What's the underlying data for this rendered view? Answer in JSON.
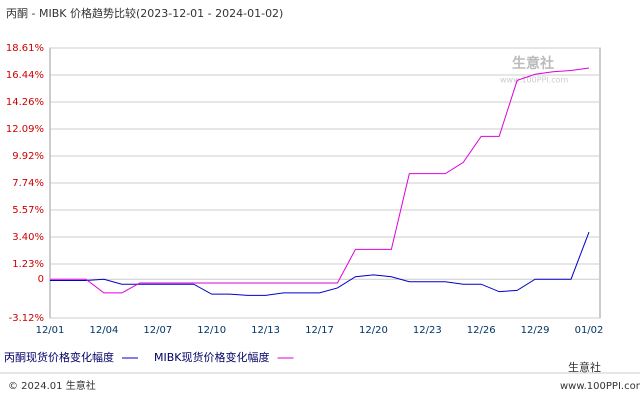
{
  "chart_data": {
    "type": "line",
    "title": "丙酮 - MIBK 价格趋势比较(2023-12-01 - 2024-01-02)",
    "categories": [
      "12/01",
      null,
      null,
      "12/04",
      null,
      null,
      "12/07",
      null,
      null,
      "12/10",
      null,
      null,
      "12/13",
      null,
      null,
      "12/17",
      null,
      null,
      "12/20",
      null,
      null,
      "12/23",
      null,
      null,
      "12/26",
      null,
      null,
      "12/29",
      null,
      null,
      "01/02"
    ],
    "series": [
      {
        "name": "丙酮现货价格变化幅度",
        "color": "#0000cc",
        "values": [
          -0.1,
          -0.1,
          -0.1,
          0,
          -0.4,
          -0.4,
          -0.4,
          -0.4,
          -0.4,
          -1.2,
          -1.2,
          -1.3,
          -1.3,
          -1.1,
          -1.1,
          -1.1,
          -0.7,
          0.2,
          0.35,
          0.2,
          -0.2,
          -0.2,
          -0.2,
          -0.4,
          -0.4,
          -1.0,
          -0.9,
          0,
          0,
          0,
          3.8
        ]
      },
      {
        "name": "MIBK现货价格变化幅度",
        "color": "#dd00dd",
        "values": [
          0,
          0,
          0,
          -1.1,
          -1.1,
          -0.3,
          -0.3,
          -0.3,
          -0.3,
          -0.3,
          -0.3,
          -0.3,
          -0.3,
          -0.3,
          -0.3,
          -0.3,
          -0.3,
          2.4,
          2.4,
          2.4,
          8.5,
          8.5,
          8.5,
          9.4,
          11.5,
          11.5,
          16.0,
          16.5,
          16.7,
          16.8,
          17.0
        ]
      }
    ],
    "ylim": [
      -3.12,
      18.61
    ],
    "yticks": [
      {
        "value": 18.61,
        "label": "18.61%"
      },
      {
        "value": 16.44,
        "label": "16.44%"
      },
      {
        "value": 14.26,
        "label": "14.26%"
      },
      {
        "value": 12.09,
        "label": "12.09%"
      },
      {
        "value": 9.92,
        "label": "9.92%"
      },
      {
        "value": 7.74,
        "label": "7.74%"
      },
      {
        "value": 5.57,
        "label": "5.57%"
      },
      {
        "value": 3.4,
        "label": "3.40%"
      },
      {
        "value": 1.23,
        "label": "1.23%"
      },
      0,
      {
        "value": -3.12,
        "label": "-3.12%"
      }
    ],
    "grid": true
  },
  "watermark": {
    "name": "生意社",
    "url": "www.100PPI.com"
  },
  "footer": {
    "copyright": "© 2024.01 生意社",
    "brand": "生意社",
    "url": "www.100PPI.com"
  }
}
